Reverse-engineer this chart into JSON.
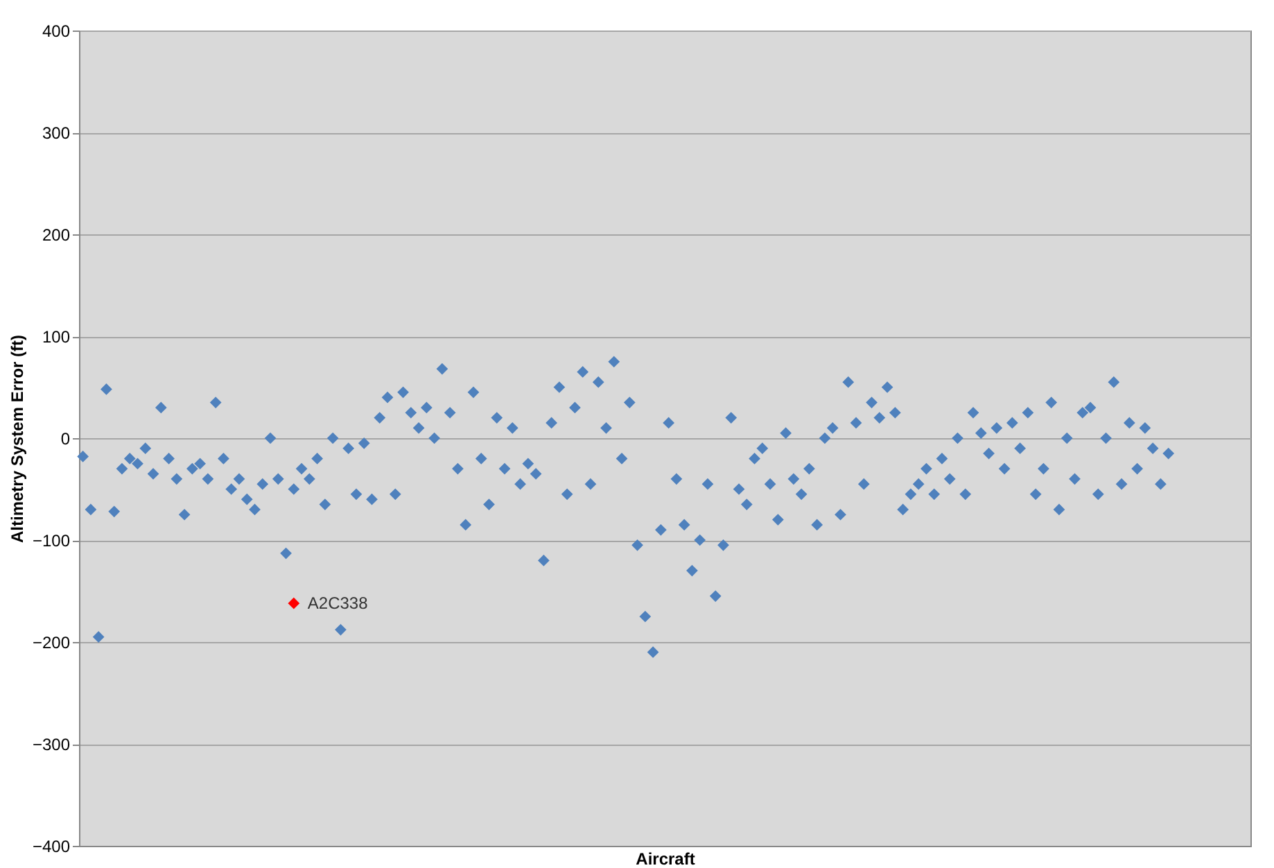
{
  "chart_data": {
    "type": "scatter",
    "xlabel": "Aircraft",
    "ylabel": "Altimetry System Error (ft)",
    "categories": [
      null,
      null,
      null,
      null,
      null,
      null,
      null,
      null,
      null,
      null,
      null,
      null,
      null,
      null,
      null,
      null,
      null,
      null,
      null,
      null,
      null,
      null,
      null,
      null,
      null,
      null,
      null,
      null,
      null,
      null,
      null,
      null,
      null,
      null,
      null,
      null,
      null,
      null,
      null,
      null,
      null,
      null,
      null,
      null,
      null,
      null,
      null,
      null,
      null,
      null,
      null,
      null,
      null,
      null,
      null,
      null,
      null,
      null,
      null,
      null,
      null,
      null,
      null,
      null,
      null,
      null,
      null,
      null,
      null,
      null,
      null,
      null,
      null,
      null,
      null,
      null,
      null,
      null,
      null,
      null,
      null,
      null,
      null,
      null,
      null,
      null,
      null,
      null,
      null,
      null,
      null,
      null,
      null,
      null,
      null,
      null,
      null,
      null,
      null,
      null,
      null,
      null,
      null,
      null,
      null,
      null,
      null,
      null,
      null,
      null,
      null,
      null,
      null,
      null,
      null,
      null,
      null,
      null,
      null,
      null,
      null,
      null,
      null,
      null,
      null,
      null,
      null,
      null,
      null,
      null,
      null,
      null,
      null,
      null,
      null,
      null,
      null,
      null,
      null,
      null,
      null,
      null,
      null,
      null,
      null,
      null,
      null,
      null,
      null,
      null
    ],
    "series": [
      {
        "color": "#4f81bd",
        "values": [
          -18,
          -70,
          -195,
          48,
          -72,
          -30,
          -20,
          -25,
          -10,
          -35,
          30,
          -20,
          -40,
          -75,
          -30,
          -25,
          -40,
          35,
          -20,
          -50,
          -40,
          -60,
          -70,
          -45,
          0,
          -40,
          -113,
          -50,
          -30,
          -40,
          -20,
          -65,
          0,
          -188,
          -10,
          -55,
          -5,
          -60,
          20,
          40,
          -55,
          45,
          25,
          10,
          30,
          0,
          68,
          25,
          -30,
          -85,
          45,
          -20,
          -65,
          20,
          -30,
          10,
          -45,
          -25,
          -35,
          -120,
          15,
          50,
          -55,
          30,
          65,
          -45,
          55,
          10,
          75,
          -20,
          35,
          -105,
          -175,
          -210,
          -90,
          15,
          -40,
          -85,
          -130,
          -100,
          -45,
          -155,
          -105,
          20,
          -50,
          -65,
          -20,
          -10,
          -45,
          -80,
          5,
          -40,
          -55,
          -30,
          -85,
          0,
          10,
          -75,
          55,
          15,
          -45,
          35,
          20,
          50,
          25,
          -70,
          -55,
          -45,
          -30,
          -55,
          -20,
          -40,
          0,
          -55,
          25,
          5,
          -15,
          10,
          -30,
          15,
          -10,
          25,
          -55,
          -30,
          35,
          -70,
          0,
          -40,
          25,
          30,
          -55,
          0,
          55,
          -45,
          15,
          -30,
          10,
          -10,
          -45,
          -15,
          null,
          null,
          null,
          null,
          null,
          null,
          null,
          null,
          null,
          null
        ]
      },
      {
        "name": "A2C338",
        "color": "#ff0000",
        "values": [
          null,
          null,
          null,
          null,
          null,
          null,
          null,
          null,
          null,
          null,
          null,
          null,
          null,
          null,
          null,
          null,
          null,
          null,
          null,
          null,
          null,
          null,
          null,
          null,
          null,
          null,
          null,
          -162,
          null,
          null,
          null,
          null,
          null,
          null,
          null,
          null,
          null,
          null,
          null,
          null,
          null,
          null,
          null,
          null,
          null,
          null,
          null,
          null,
          null,
          null,
          null,
          null,
          null,
          null,
          null,
          null,
          null,
          null,
          null,
          null,
          null,
          null,
          null,
          null,
          null,
          null,
          null,
          null,
          null,
          null,
          null,
          null,
          null,
          null,
          null,
          null,
          null,
          null,
          null,
          null,
          null,
          null,
          null,
          null,
          null,
          null,
          null,
          null,
          null,
          null,
          null,
          null,
          null,
          null,
          null,
          null,
          null,
          null,
          null,
          null,
          null,
          null,
          null,
          null,
          null,
          null,
          null,
          null,
          null,
          null,
          null,
          null,
          null,
          null,
          null,
          null,
          null,
          null,
          null,
          null,
          null,
          null,
          null,
          null,
          null,
          null,
          null,
          null,
          null,
          null,
          null,
          null,
          null,
          null,
          null,
          null,
          null,
          null,
          null,
          null,
          null,
          null,
          null,
          null,
          null,
          null,
          null,
          null,
          null,
          null
        ]
      }
    ],
    "ylim": [
      -400,
      400
    ],
    "yticks": [
      -400,
      -300,
      -200,
      -100,
      0,
      100,
      200,
      300,
      400
    ],
    "grid": "y",
    "marker": "diamond",
    "tick_labels": "y"
  }
}
